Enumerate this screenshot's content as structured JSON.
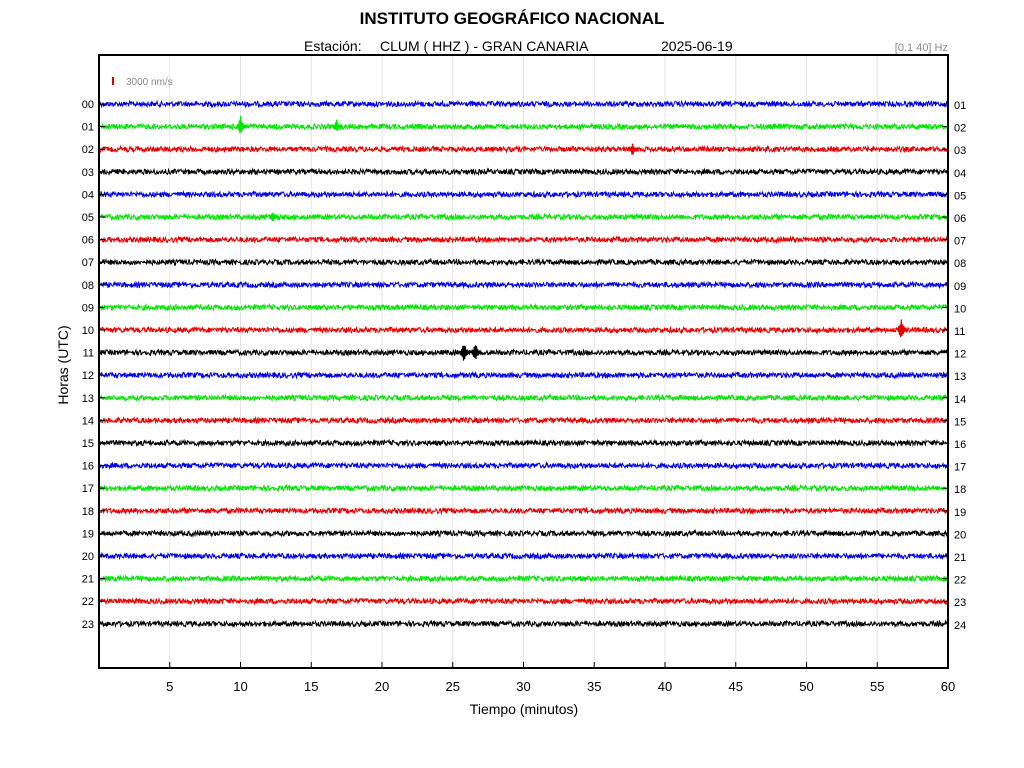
{
  "header": {
    "title": "INSTITUTO GEOGRÁFICO NACIONAL",
    "station_label": "Estación:",
    "station": "CLUM ( HHZ ) - GRAN CANARIA",
    "date": "2025-06-19",
    "filter": "[0.1 40] Hz"
  },
  "chart_data": {
    "type": "line",
    "title": "INSTITUTO GEOGRÁFICO NACIONAL",
    "xlabel": "Tiempo (minutos)",
    "ylabel": "Horas (UTC)",
    "xlim": [
      0,
      60
    ],
    "x_ticks": [
      5,
      10,
      15,
      20,
      25,
      30,
      35,
      40,
      45,
      50,
      55,
      60
    ],
    "grid": true,
    "scale_bar_label": "3000 nm/s",
    "scale_bar_color": "#e00000",
    "left_hour_labels": [
      "00",
      "01",
      "02",
      "03",
      "04",
      "05",
      "06",
      "07",
      "08",
      "09",
      "10",
      "11",
      "12",
      "13",
      "14",
      "15",
      "16",
      "17",
      "18",
      "19",
      "20",
      "21",
      "22",
      "23"
    ],
    "right_hour_labels": [
      "01",
      "02",
      "03",
      "04",
      "05",
      "06",
      "07",
      "08",
      "09",
      "10",
      "11",
      "12",
      "13",
      "14",
      "15",
      "16",
      "17",
      "18",
      "19",
      "20",
      "21",
      "22",
      "23",
      "24"
    ],
    "trace_colors": [
      "#0000e6",
      "#00e600",
      "#e60000",
      "#000000"
    ],
    "events": [
      {
        "hour": "01",
        "minute": 10.0,
        "amplitude": "medium"
      },
      {
        "hour": "01",
        "minute": 16.8,
        "amplitude": "small"
      },
      {
        "hour": "02",
        "minute": 37.7,
        "amplitude": "small"
      },
      {
        "hour": "05",
        "minute": 12.3,
        "amplitude": "small"
      },
      {
        "hour": "10",
        "minute": 56.7,
        "amplitude": "medium"
      },
      {
        "hour": "11",
        "minute": 25.8,
        "amplitude": "medium"
      },
      {
        "hour": "11",
        "minute": 26.6,
        "amplitude": "medium"
      }
    ]
  }
}
